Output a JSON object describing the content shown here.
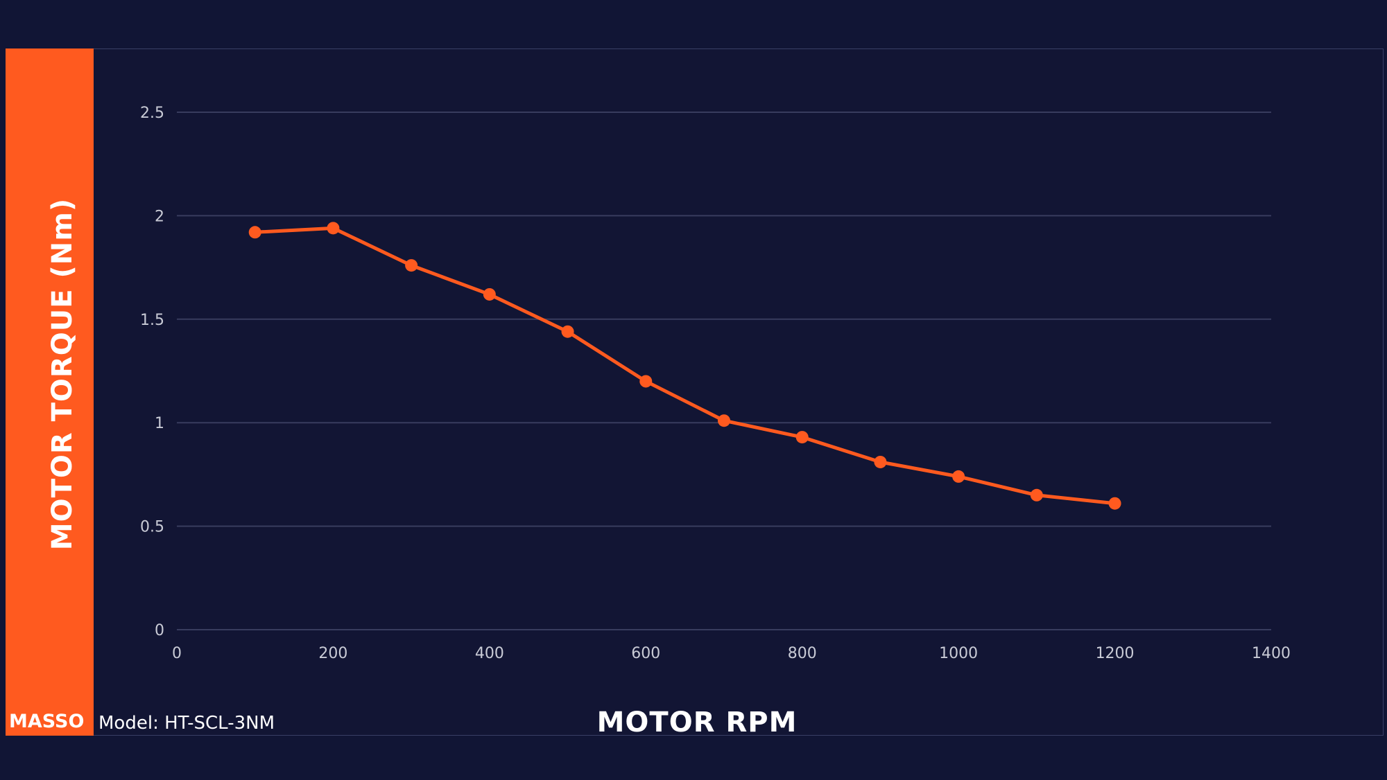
{
  "chart_data": {
    "type": "line",
    "xlabel": "MOTOR RPM",
    "ylabel": "MOTOR TORQUE (Nm)",
    "xlim": [
      0,
      1400
    ],
    "ylim": [
      0,
      2.5
    ],
    "x_ticks": [
      0,
      200,
      400,
      600,
      800,
      1000,
      1200,
      1400
    ],
    "y_ticks": [
      0,
      0.5,
      1,
      1.5,
      2,
      2.5
    ],
    "y_tick_labels": [
      "0",
      "0.5",
      "1",
      "1.5",
      "2",
      "2.5"
    ],
    "grid": true,
    "series": [
      {
        "x": [
          100,
          200,
          300,
          400,
          500,
          600,
          700,
          800,
          900,
          1000,
          1100,
          1200
        ],
        "values": [
          1.92,
          1.94,
          1.76,
          1.62,
          1.44,
          1.2,
          1.01,
          0.93,
          0.81,
          0.74,
          0.65,
          0.61
        ],
        "color": "#ff5a1f"
      }
    ]
  },
  "footer": {
    "brand": "MASSO",
    "model_text": "Model: HT-SCL-3NM"
  },
  "colors": {
    "background": "#111535",
    "accent": "#ff5a1f",
    "gridline": "#383c5e"
  }
}
